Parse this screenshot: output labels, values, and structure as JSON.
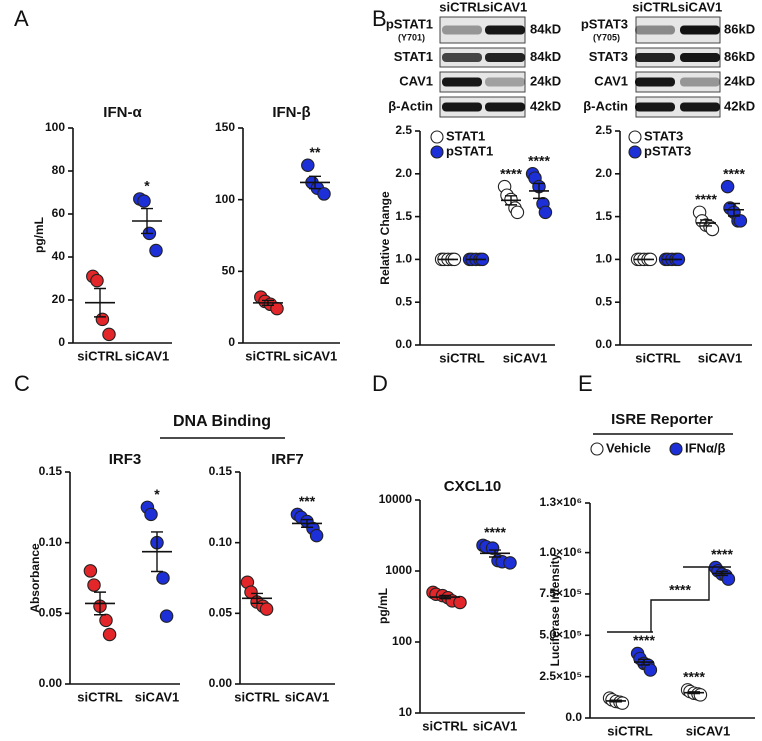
{
  "chart_data": [
    {
      "type": "dot",
      "panel": "A",
      "title": "IFN-α",
      "ylabel": "pg/mL",
      "categories": [
        "siCTRL",
        "siCAV1"
      ],
      "ylim": [
        0,
        100
      ],
      "yticks": [
        0,
        20,
        40,
        60,
        80,
        100
      ],
      "groups": [
        {
          "color": "#e3262a",
          "values": [
            31,
            29,
            11,
            4
          ],
          "mean": 18.75,
          "sem": 6.6
        },
        {
          "color": "#1d2fd6",
          "values": [
            67,
            66,
            51,
            43
          ],
          "mean": 56.75,
          "sem": 5.8,
          "annotation": "*"
        }
      ]
    },
    {
      "type": "dot",
      "title": "IFN-β",
      "categories": [
        "siCTRL",
        "siCAV1"
      ],
      "ylim": [
        0,
        150
      ],
      "yticks": [
        0,
        50,
        100,
        150
      ],
      "groups": [
        {
          "color": "#e3262a",
          "values": [
            32,
            29,
            27,
            24
          ],
          "mean": 28,
          "sem": 1.7
        },
        {
          "color": "#1d2fd6",
          "values": [
            124,
            112,
            108,
            104
          ],
          "mean": 112,
          "sem": 4.3,
          "annotation": "**"
        }
      ]
    },
    {
      "type": "dot",
      "panel": "B",
      "ylabel": "Relative Change",
      "categories": [
        "siCTRL",
        "siCAV1"
      ],
      "ylim": [
        0,
        2.5
      ],
      "yticks": [
        {
          "value": 0,
          "label": "0.0"
        },
        {
          "value": 0.5,
          "label": "0.5"
        },
        {
          "value": 1,
          "label": "1.0"
        },
        {
          "value": 1.5,
          "label": "1.5"
        },
        {
          "value": 2,
          "label": "2.0"
        },
        {
          "value": 2.5,
          "label": "2.5"
        }
      ],
      "series": [
        {
          "name": "STAT1",
          "color": "#ffffff",
          "values": [
            [
              1,
              1,
              1,
              1,
              1
            ],
            [
              1.85,
              1.75,
              1.7,
              1.6,
              1.55
            ]
          ],
          "means": [
            1,
            1.69
          ],
          "sems": [
            0,
            0.053
          ],
          "annotations": [
            null,
            "****"
          ]
        },
        {
          "name": "pSTAT1",
          "color": "#1d2fd6",
          "values": [
            [
              1,
              1,
              1,
              1,
              1
            ],
            [
              2.0,
              1.95,
              1.85,
              1.65,
              1.55
            ]
          ],
          "means": [
            1,
            1.8
          ],
          "sems": [
            0,
            0.087
          ],
          "annotations": [
            null,
            "****"
          ]
        }
      ]
    },
    {
      "type": "dot",
      "categories": [
        "siCTRL",
        "siCAV1"
      ],
      "ylim": [
        0,
        2.5
      ],
      "yticks": [
        {
          "value": 0,
          "label": "0.0"
        },
        {
          "value": 0.5,
          "label": "0.5"
        },
        {
          "value": 1,
          "label": "1.0"
        },
        {
          "value": 1.5,
          "label": "1.5"
        },
        {
          "value": 2,
          "label": "2.0"
        },
        {
          "value": 2.5,
          "label": "2.5"
        }
      ],
      "series": [
        {
          "name": "STAT3",
          "color": "#ffffff",
          "values": [
            [
              1,
              1,
              1,
              1,
              1
            ],
            [
              1.55,
              1.45,
              1.4,
              1.38,
              1.35
            ]
          ],
          "means": [
            1,
            1.426
          ],
          "sems": [
            0,
            0.035
          ],
          "annotations": [
            null,
            "****"
          ]
        },
        {
          "name": "pSTAT3",
          "color": "#1d2fd6",
          "values": [
            [
              1,
              1,
              1,
              1,
              1
            ],
            [
              1.85,
              1.6,
              1.55,
              1.45,
              1.45
            ]
          ],
          "means": [
            1,
            1.58
          ],
          "sems": [
            0,
            0.073
          ],
          "annotations": [
            null,
            "****"
          ]
        }
      ]
    },
    {
      "type": "dot",
      "panel": "C",
      "group_title": "DNA Binding",
      "title": "IRF3",
      "ylabel": "Absorbance",
      "categories": [
        "siCTRL",
        "siCAV1"
      ],
      "ylim": [
        0,
        0.15
      ],
      "yticks": [
        {
          "value": 0,
          "label": "0.00"
        },
        {
          "value": 0.05,
          "label": "0.05"
        },
        {
          "value": 0.1,
          "label": "0.10"
        },
        {
          "value": 0.15,
          "label": "0.15"
        }
      ],
      "groups": [
        {
          "color": "#e3262a",
          "values": [
            0.08,
            0.07,
            0.055,
            0.045,
            0.035
          ],
          "mean": 0.057,
          "sem": 0.008
        },
        {
          "color": "#1d2fd6",
          "values": [
            0.125,
            0.12,
            0.1,
            0.075,
            0.048
          ],
          "mean": 0.0936,
          "sem": 0.014,
          "annotation": "*"
        }
      ]
    },
    {
      "type": "dot",
      "title": "IRF7",
      "categories": [
        "siCTRL",
        "siCAV1"
      ],
      "ylim": [
        0,
        0.15
      ],
      "yticks": [
        {
          "value": 0,
          "label": "0.00"
        },
        {
          "value": 0.05,
          "label": "0.05"
        },
        {
          "value": 0.1,
          "label": "0.10"
        },
        {
          "value": 0.15,
          "label": "0.15"
        }
      ],
      "groups": [
        {
          "color": "#e3262a",
          "values": [
            0.072,
            0.065,
            0.058,
            0.055,
            0.053
          ],
          "mean": 0.0606,
          "sem": 0.0035
        },
        {
          "color": "#1d2fd6",
          "values": [
            0.12,
            0.118,
            0.115,
            0.11,
            0.105
          ],
          "mean": 0.1136,
          "sem": 0.0027,
          "annotation": "***"
        }
      ]
    },
    {
      "type": "dot",
      "panel": "D",
      "title": "CXCL10",
      "ylabel": "pg/mL",
      "categories": [
        "siCTRL",
        "siCAV1"
      ],
      "log_scale": true,
      "ylim": [
        10,
        10000
      ],
      "yticks": [
        10,
        100,
        1000,
        10000
      ],
      "groups": [
        {
          "color": "#e3262a",
          "values": [
            500,
            470,
            450,
            420,
            380,
            360
          ],
          "mean": 430,
          "sem": 22
        },
        {
          "color": "#1d2fd6",
          "values": [
            2300,
            2200,
            2100,
            1400,
            1350,
            1300
          ],
          "mean": 1775,
          "sem": 200,
          "annotation": "****"
        }
      ]
    },
    {
      "type": "dot",
      "panel": "E",
      "title": "ISRE Reporter",
      "ylabel": "Luciferase Intensity",
      "categories": [
        "siCTRL",
        "siCAV1"
      ],
      "ylim": [
        0,
        1300000
      ],
      "yticks": [
        {
          "value": 0,
          "label": "0.0"
        },
        {
          "value": 250000,
          "label": "2.5×10⁵"
        },
        {
          "value": 500000,
          "label": "5.0×10⁵"
        },
        {
          "value": 750000,
          "label": "7.5×10⁵"
        },
        {
          "value": 1000000,
          "label": "1.0×10⁶"
        },
        {
          "value": 1300000,
          "label": "1.3×10⁶"
        }
      ],
      "bracket_annotation": "****",
      "series": [
        {
          "name": "Vehicle",
          "color": "#ffffff",
          "values": [
            [
              120000,
              110000,
              100000,
              95000,
              90000
            ],
            [
              170000,
              160000,
              150000,
              145000,
              140000
            ]
          ],
          "means": [
            103000,
            153000
          ],
          "sems": [
            5000,
            5000
          ],
          "annotations": [
            null,
            "****"
          ]
        },
        {
          "name": "IFNα/β",
          "color": "#1d2fd6",
          "values": [
            [
              390000,
              360000,
              330000,
              320000,
              290000
            ],
            [
              910000,
              890000,
              870000,
              860000,
              840000
            ]
          ],
          "means": [
            338000,
            874000
          ],
          "sems": [
            17000,
            12000
          ],
          "annotations": [
            "****",
            "****"
          ]
        }
      ]
    }
  ],
  "blots": [
    {
      "columns": [
        "siCTRL",
        "siCAV1"
      ],
      "rows": [
        {
          "label": "pSTAT1",
          "sublabel": "(Y701)",
          "size": "84kD"
        },
        {
          "label": "STAT1",
          "size": "84kD"
        },
        {
          "label": "CAV1",
          "size": "24kD"
        },
        {
          "label": "β-Actin",
          "size": "42kD"
        }
      ]
    },
    {
      "columns": [
        "siCTRL",
        "siCAV1"
      ],
      "rows": [
        {
          "label": "pSTAT3",
          "sublabel": "(Y705)",
          "size": "86kD"
        },
        {
          "label": "STAT3",
          "size": "86kD"
        },
        {
          "label": "CAV1",
          "size": "24kD"
        },
        {
          "label": "β-Actin",
          "size": "42kD"
        }
      ]
    }
  ]
}
